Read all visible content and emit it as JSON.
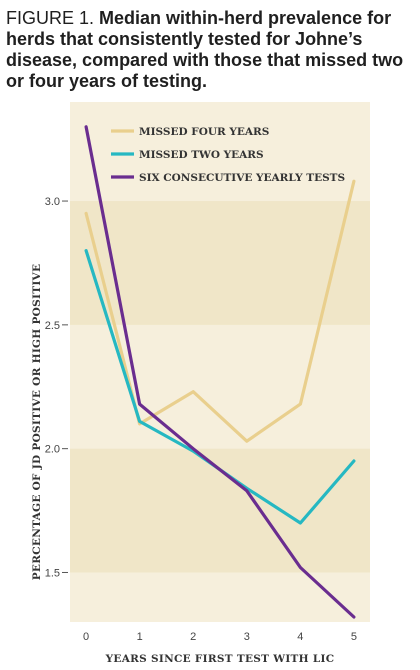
{
  "figure": {
    "label": "FIGURE 1.",
    "title": "Median within-herd prevalence for herds that consistently tested for Johne’s disease, compared with those that missed two or four years of testing."
  },
  "colors": {
    "background": "#f6efdc",
    "band": "#f0e6c8",
    "missed_four": "#e9cf8d",
    "missed_two": "#26b8c2",
    "six_consecutive": "#6a2d8f"
  },
  "chart_data": {
    "type": "line",
    "title": "Median within-herd prevalence for herds that consistently tested for Johne’s disease, compared with those that missed two or four years of testing.",
    "xlabel": "YEARS SINCE FIRST TEST WITH LIC",
    "ylabel": "PERCENTAGE OF JD POSITIVE OR HIGH POSITIVE",
    "x": [
      0,
      1,
      2,
      3,
      4,
      5
    ],
    "x_ticks": [
      "0",
      "1",
      "2",
      "3",
      "4",
      "5"
    ],
    "y_ticks": [
      "3.0",
      "2.5",
      "2.0",
      "1.5"
    ],
    "y_tick_values": [
      3.0,
      2.5,
      2.0,
      1.5
    ],
    "xlim": [
      -0.3,
      5.3
    ],
    "ylim": [
      1.3,
      3.4
    ],
    "bands": [
      [
        2.5,
        3.0
      ],
      [
        1.5,
        2.0
      ]
    ],
    "grid": false,
    "legend_position": "top",
    "series": [
      {
        "key": "missed_four",
        "name": "MISSED FOUR YEARS",
        "values": [
          2.95,
          2.1,
          2.23,
          2.03,
          2.18,
          3.08
        ]
      },
      {
        "key": "missed_two",
        "name": "MISSED TWO YEARS",
        "values": [
          2.8,
          2.11,
          1.99,
          1.84,
          1.7,
          1.95
        ]
      },
      {
        "key": "six_consecutive",
        "name": "SIX CONSECUTIVE YEARLY TESTS",
        "values": [
          3.3,
          2.18,
          2.0,
          1.83,
          1.52,
          1.32
        ]
      }
    ]
  }
}
